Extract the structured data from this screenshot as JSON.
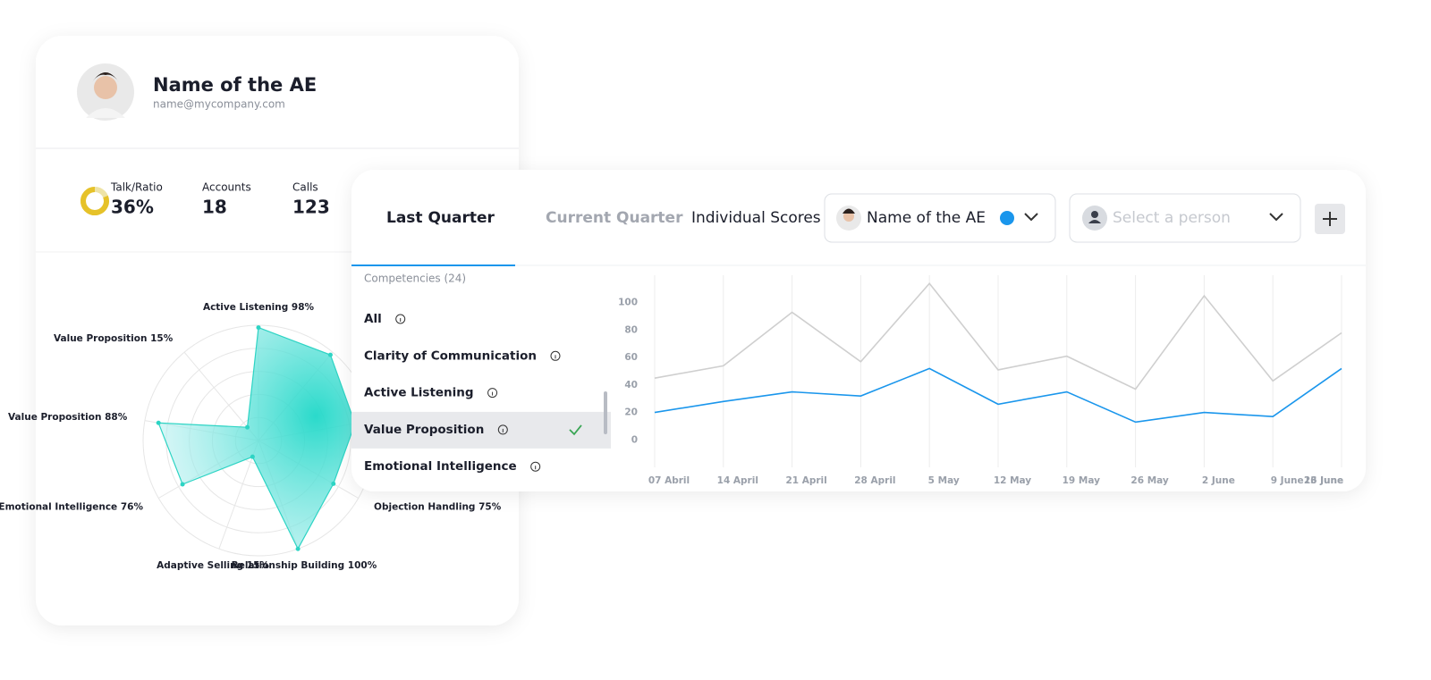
{
  "profile": {
    "name": "Name of the AE",
    "email": "name@mycompany.com"
  },
  "stats": [
    {
      "label": "Talk/Ratio",
      "value": "36%"
    },
    {
      "label": "Accounts",
      "value": "18"
    },
    {
      "label": "Calls",
      "value": "123"
    }
  ],
  "tabs": [
    "Last Quarter",
    "Current Quarter",
    "Individual Scores"
  ],
  "selectors": {
    "person": "Name of the AE",
    "placeholder": "Select a person"
  },
  "competencies": {
    "heading": "Competencies (24)",
    "items": [
      "All",
      "Clarity of Communication",
      "Active Listening",
      "Value Proposition",
      "Emotional Intelligence"
    ],
    "selected": 3
  },
  "chart_data": [
    {
      "type": "radar",
      "categories": [
        "Active Listening 98%",
        null,
        null,
        "Objection Handling 75%",
        "Relationship Building 100%",
        "Adaptive Selling 15%",
        "Emotional Intelligence 76%",
        "Value Proposition 88%",
        "Value Proposition 15%"
      ],
      "values": [
        98,
        97,
        85,
        75,
        100,
        15,
        76,
        88,
        15
      ],
      "ylim": [
        0,
        100
      ],
      "color": "#2dd4c4"
    },
    {
      "type": "line",
      "categories": [
        "07 Abril",
        "14 April",
        "21 April",
        "28 April",
        "5 May",
        "12 May",
        "19 May",
        "26 May",
        "2 June",
        "9 June",
        "16 June",
        "23 June"
      ],
      "series": [
        {
          "color": "#cfcfcf",
          "values": [
            45,
            54,
            93,
            57,
            114,
            51,
            61,
            37,
            105,
            43,
            78,
            null
          ]
        },
        {
          "color": "#1a96ec",
          "values": [
            20,
            28,
            35,
            32,
            52,
            26,
            35,
            13,
            20,
            17,
            52,
            null
          ]
        }
      ],
      "ylim": [
        -20,
        120
      ],
      "yticks": [
        0,
        20,
        40,
        60,
        80,
        100
      ]
    }
  ]
}
